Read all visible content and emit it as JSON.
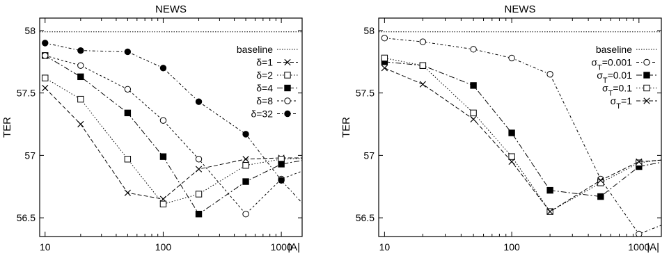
{
  "chart_data": [
    {
      "type": "line",
      "title": "NEWS",
      "ylabel": "TER",
      "xlabel": "|A|",
      "xscale": "log",
      "xlim": [
        9,
        1500
      ],
      "ylim": [
        56.35,
        58.1
      ],
      "xticks": [
        10,
        100,
        1000
      ],
      "xtick_labels": [
        "10",
        "100",
        "1000"
      ],
      "yticks": [
        56.5,
        57,
        57.5,
        58
      ],
      "ytick_labels": [
        "56.5",
        "57",
        "57.5",
        "58"
      ],
      "legend_position": "top-right",
      "baseline": {
        "name": "baseline",
        "value": 57.99
      },
      "series": [
        {
          "name": "δ=1",
          "marker": "x",
          "dash": "6,3",
          "x": [
            10,
            20,
            50,
            100,
            200,
            500,
            1000,
            2000
          ],
          "y": [
            57.54,
            57.25,
            56.7,
            56.65,
            56.89,
            56.97,
            56.98,
            56.98
          ]
        },
        {
          "name": "δ=2",
          "marker": "square-open",
          "dash": "1.5,2.5",
          "x": [
            10,
            20,
            50,
            100,
            200,
            500,
            1000,
            2000
          ],
          "y": [
            57.62,
            57.45,
            56.97,
            56.61,
            56.69,
            56.92,
            56.97,
            56.98
          ]
        },
        {
          "name": "δ=4",
          "marker": "square-filled",
          "dash": "8,3,2,3",
          "x": [
            10,
            20,
            50,
            100,
            200,
            500,
            1000,
            2000
          ],
          "y": [
            57.8,
            57.63,
            57.34,
            56.99,
            56.53,
            56.79,
            56.93,
            56.98
          ]
        },
        {
          "name": "δ=8",
          "marker": "circle-open",
          "dash": "3,3",
          "x": [
            10,
            20,
            50,
            100,
            200,
            500,
            1000,
            2000
          ],
          "y": [
            57.8,
            57.72,
            57.53,
            57.28,
            56.97,
            56.53,
            56.81,
            56.92
          ]
        },
        {
          "name": "δ=32",
          "marker": "circle-filled",
          "dash": "4,3,1.5,3",
          "x": [
            10,
            20,
            50,
            100,
            200,
            500,
            1000,
            2000
          ],
          "y": [
            57.9,
            57.84,
            57.83,
            57.7,
            57.43,
            57.17,
            56.8,
            56.49
          ]
        }
      ]
    },
    {
      "type": "line",
      "title": "NEWS",
      "ylabel": "TER",
      "xlabel": "|A|",
      "xscale": "log",
      "xlim": [
        9,
        1500
      ],
      "ylim": [
        56.35,
        58.1
      ],
      "xticks": [
        10,
        100,
        1000
      ],
      "xtick_labels": [
        "10",
        "100",
        "1000"
      ],
      "yticks": [
        56.5,
        57,
        57.5,
        58
      ],
      "ytick_labels": [
        "56.5",
        "57",
        "57.5",
        "58"
      ],
      "legend_position": "top-right",
      "baseline": {
        "name": "baseline",
        "value": 57.99
      },
      "series": [
        {
          "name": "σT=0.001",
          "name_base": "σ",
          "name_sub": "T",
          "name_rest": "=0.001",
          "marker": "circle-open",
          "dash": "4,3,1.5,3",
          "x": [
            10,
            20,
            50,
            100,
            200,
            500,
            1000,
            2000
          ],
          "y": [
            57.94,
            57.91,
            57.85,
            57.78,
            57.65,
            56.81,
            56.37,
            56.49
          ]
        },
        {
          "name": "σT=0.01",
          "name_base": "σ",
          "name_sub": "T",
          "name_rest": "=0.01",
          "marker": "square-filled",
          "dash": "8,3,2,3",
          "x": [
            10,
            20,
            50,
            100,
            200,
            500,
            1000,
            2000
          ],
          "y": [
            57.75,
            57.72,
            57.56,
            57.18,
            56.72,
            56.67,
            56.91,
            56.97
          ]
        },
        {
          "name": "σT=0.1",
          "name_base": "σ",
          "name_sub": "T",
          "name_rest": "=0.1",
          "marker": "square-open",
          "dash": "1.5,2.5",
          "x": [
            10,
            20,
            50,
            100,
            200,
            500,
            1000,
            2000
          ],
          "y": [
            57.78,
            57.72,
            57.34,
            56.99,
            56.55,
            56.78,
            56.94,
            56.98
          ]
        },
        {
          "name": "σT=1",
          "name_base": "σ",
          "name_sub": "T",
          "name_rest": "=1",
          "marker": "x",
          "dash": "6,3",
          "x": [
            10,
            20,
            50,
            100,
            200,
            500,
            1000,
            2000
          ],
          "y": [
            57.7,
            57.57,
            57.29,
            56.95,
            56.55,
            56.8,
            56.95,
            56.97
          ]
        }
      ]
    }
  ]
}
